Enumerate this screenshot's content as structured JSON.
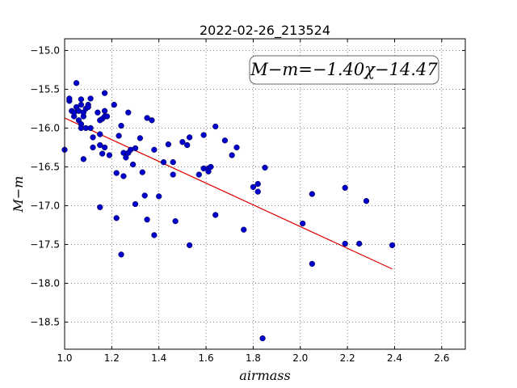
{
  "chart_data": {
    "type": "scatter",
    "title": "2022-02-26_213524",
    "xlabel": "airmass",
    "ylabel": "M−m",
    "xlim": [
      1.0,
      2.7
    ],
    "ylim": [
      -18.85,
      -14.85
    ],
    "y_inverted": true,
    "grid": true,
    "grid_style": "dotted",
    "x_ticks": [
      "1.0",
      "1.2",
      "1.4",
      "1.6",
      "1.8",
      "2.0",
      "2.2",
      "2.4",
      "2.6"
    ],
    "y_ticks": [
      "−15.0",
      "−15.5",
      "−16.0",
      "−16.5",
      "−17.0",
      "−17.5",
      "−18.0",
      "−18.5"
    ],
    "annotation": "M−m=−1.40χ−14.47",
    "annotation_placement": "top-right",
    "point_color": "#0000cc",
    "fit_color": "#dd0000",
    "fit_line": {
      "slope": -1.4,
      "intercept": -14.47,
      "x_start": 1.0,
      "x_end": 2.39
    },
    "points": [
      [
        1.0,
        -16.28
      ],
      [
        1.02,
        -15.65
      ],
      [
        1.02,
        -15.62
      ],
      [
        1.03,
        -15.78
      ],
      [
        1.04,
        -15.85
      ],
      [
        1.04,
        -15.8
      ],
      [
        1.05,
        -15.42
      ],
      [
        1.05,
        -15.73
      ],
      [
        1.06,
        -15.78
      ],
      [
        1.06,
        -15.9
      ],
      [
        1.07,
        -15.63
      ],
      [
        1.07,
        -15.7
      ],
      [
        1.07,
        -15.95
      ],
      [
        1.07,
        -16.0
      ],
      [
        1.08,
        -15.85
      ],
      [
        1.08,
        -15.8
      ],
      [
        1.08,
        -16.4
      ],
      [
        1.09,
        -16.0
      ],
      [
        1.09,
        -15.75
      ],
      [
        1.1,
        -15.7
      ],
      [
        1.1,
        -15.73
      ],
      [
        1.11,
        -15.62
      ],
      [
        1.11,
        -16.0
      ],
      [
        1.12,
        -16.12
      ],
      [
        1.12,
        -16.25
      ],
      [
        1.14,
        -15.8
      ],
      [
        1.15,
        -17.02
      ],
      [
        1.15,
        -16.08
      ],
      [
        1.15,
        -16.22
      ],
      [
        1.15,
        -15.9
      ],
      [
        1.16,
        -16.33
      ],
      [
        1.16,
        -15.88
      ],
      [
        1.17,
        -15.55
      ],
      [
        1.17,
        -15.78
      ],
      [
        1.17,
        -15.85
      ],
      [
        1.17,
        -16.25
      ],
      [
        1.18,
        -15.85
      ],
      [
        1.19,
        -16.35
      ],
      [
        1.21,
        -15.7
      ],
      [
        1.22,
        -16.58
      ],
      [
        1.22,
        -17.16
      ],
      [
        1.23,
        -16.1
      ],
      [
        1.24,
        -17.63
      ],
      [
        1.24,
        -15.97
      ],
      [
        1.25,
        -16.32
      ],
      [
        1.25,
        -16.62
      ],
      [
        1.26,
        -16.38
      ],
      [
        1.27,
        -15.8
      ],
      [
        1.27,
        -16.32
      ],
      [
        1.28,
        -16.28
      ],
      [
        1.29,
        -16.47
      ],
      [
        1.3,
        -16.26
      ],
      [
        1.3,
        -16.98
      ],
      [
        1.32,
        -16.13
      ],
      [
        1.33,
        -16.57
      ],
      [
        1.34,
        -16.87
      ],
      [
        1.35,
        -17.18
      ],
      [
        1.35,
        -15.87
      ],
      [
        1.37,
        -15.9
      ],
      [
        1.38,
        -16.28
      ],
      [
        1.38,
        -17.38
      ],
      [
        1.4,
        -16.88
      ],
      [
        1.42,
        -16.44
      ],
      [
        1.44,
        -16.21
      ],
      [
        1.46,
        -16.44
      ],
      [
        1.46,
        -16.6
      ],
      [
        1.47,
        -17.2
      ],
      [
        1.5,
        -16.18
      ],
      [
        1.52,
        -16.22
      ],
      [
        1.53,
        -16.12
      ],
      [
        1.53,
        -17.51
      ],
      [
        1.57,
        -16.6
      ],
      [
        1.59,
        -16.09
      ],
      [
        1.59,
        -16.52
      ],
      [
        1.61,
        -16.52
      ],
      [
        1.61,
        -16.56
      ],
      [
        1.62,
        -16.5
      ],
      [
        1.64,
        -17.12
      ],
      [
        1.64,
        -15.98
      ],
      [
        1.68,
        -16.16
      ],
      [
        1.71,
        -16.35
      ],
      [
        1.73,
        -16.25
      ],
      [
        1.76,
        -17.31
      ],
      [
        1.8,
        -16.76
      ],
      [
        1.82,
        -16.82
      ],
      [
        1.82,
        -16.72
      ],
      [
        1.84,
        -18.71
      ],
      [
        1.85,
        -16.51
      ],
      [
        2.01,
        -17.23
      ],
      [
        2.05,
        -17.75
      ],
      [
        2.05,
        -16.85
      ],
      [
        2.19,
        -16.77
      ],
      [
        2.19,
        -17.49
      ],
      [
        2.25,
        -17.49
      ],
      [
        2.28,
        -16.94
      ],
      [
        2.39,
        -17.51
      ]
    ]
  }
}
